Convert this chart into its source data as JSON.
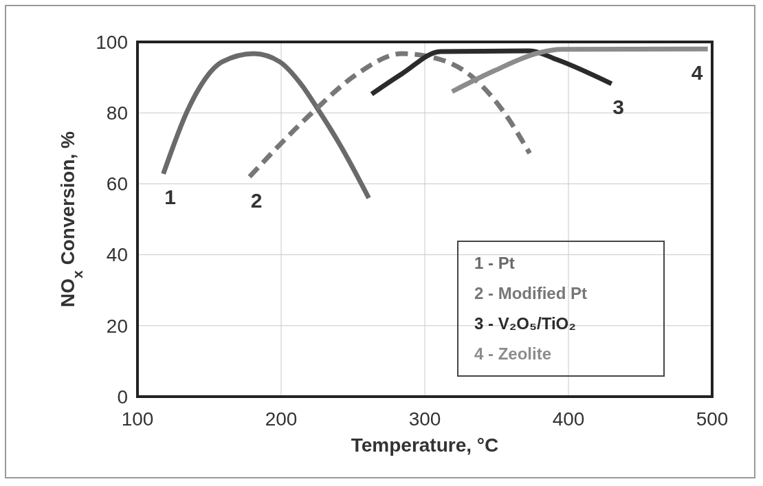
{
  "chart_data": {
    "type": "line",
    "xlabel": "Temperature, °C",
    "ylabel": "NO$_{x}$ Conversion, %",
    "xlim": [
      100,
      500
    ],
    "xticks": [
      100,
      200,
      300,
      400,
      500
    ],
    "ylim": [
      0,
      100
    ],
    "yticks": [
      0,
      20,
      40,
      60,
      80,
      100
    ],
    "grid": true,
    "legend": "bottom right",
    "marker": "none",
    "series": [
      {
        "name": "1 - Pt",
        "color": "#6a6a6a",
        "line_style": "solid",
        "x": [
          118,
          135,
          143,
          159,
          181,
          199,
          214,
          225,
          241,
          261
        ],
        "values": [
          62.8,
          80.8,
          87,
          94.4,
          96.7,
          94.4,
          88,
          81.4,
          71,
          56
        ]
      },
      {
        "name": "2 - Modified Pt",
        "color": "#777777",
        "line_style": "dashed",
        "x": [
          178,
          222,
          253,
          284,
          305,
          332,
          354,
          373
        ],
        "values": [
          62,
          80.2,
          91,
          96.7,
          95.7,
          90.5,
          80.8,
          68.6
        ]
      },
      {
        "name": "3 - V₂O₅/TiO₂",
        "color": "#2b2b2b",
        "line_style": "solid",
        "x": [
          263,
          284,
          311,
          373,
          392,
          430
        ],
        "values": [
          85.3,
          91,
          97.3,
          97.5,
          95,
          88.2
        ]
      },
      {
        "name": "4 - Zeolite",
        "color": "#8c8c8c",
        "line_style": "solid",
        "x": [
          319,
          348,
          380,
          395,
          497
        ],
        "values": [
          86,
          91.8,
          97,
          97.9,
          98
        ]
      }
    ],
    "annotations": [
      {
        "text": "1",
        "x": 118,
        "y": 62.8
      },
      {
        "text": "2",
        "x": 178,
        "y": 62
      },
      {
        "text": "3",
        "x": 430,
        "y": 88.2
      },
      {
        "text": "4",
        "x": 497,
        "y": 98
      }
    ]
  }
}
